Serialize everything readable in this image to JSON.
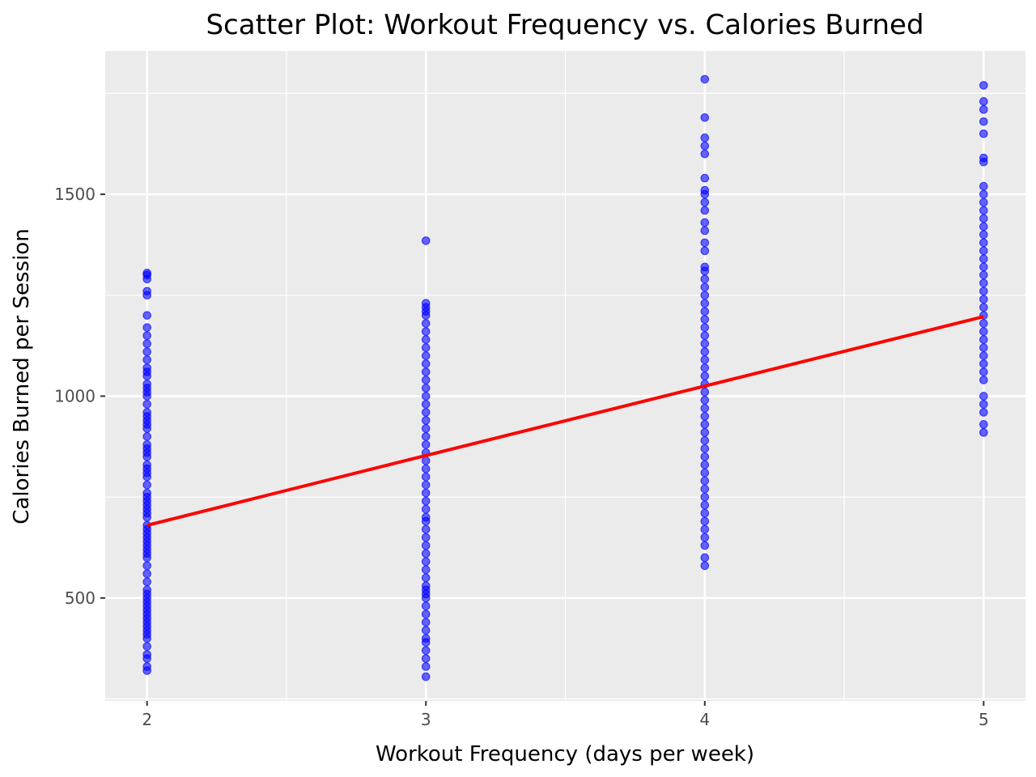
{
  "chart_data": {
    "type": "scatter",
    "title": "Scatter Plot: Workout Frequency vs. Calories Burned",
    "xlabel": "Workout Frequency (days per week)",
    "ylabel": "Calories Burned per Session",
    "xlim": [
      1.85,
      5.15
    ],
    "ylim": [
      245,
      1855
    ],
    "x_ticks": [
      2,
      3,
      4,
      5
    ],
    "x_tick_labels": [
      "2",
      "3",
      "4",
      "5"
    ],
    "y_ticks": [
      500,
      1000,
      1500
    ],
    "y_tick_labels": [
      "500",
      "1000",
      "1500"
    ],
    "grid": true,
    "legend": "none",
    "colors": {
      "points": "#0000ff",
      "trend_line": "#ff0000",
      "panel_background": "#ebebeb",
      "grid": "#ffffff"
    },
    "series": [
      {
        "x": 2,
        "y": [
          320,
          330,
          350,
          360,
          380,
          400,
          410,
          420,
          430,
          440,
          450,
          460,
          470,
          480,
          490,
          500,
          510,
          520,
          540,
          560,
          580,
          600,
          610,
          620,
          630,
          640,
          650,
          660,
          670,
          680,
          700,
          710,
          720,
          730,
          740,
          750,
          760,
          780,
          800,
          810,
          820,
          830,
          850,
          860,
          870,
          880,
          900,
          920,
          930,
          940,
          950,
          960,
          980,
          1000,
          1010,
          1020,
          1030,
          1050,
          1060,
          1070,
          1090,
          1110,
          1130,
          1150,
          1170,
          1200,
          1250,
          1260,
          1290,
          1300,
          1305
        ]
      },
      {
        "x": 3,
        "y": [
          305,
          330,
          350,
          370,
          390,
          400,
          420,
          440,
          460,
          480,
          500,
          510,
          520,
          530,
          550,
          570,
          590,
          610,
          630,
          650,
          670,
          690,
          700,
          720,
          740,
          760,
          780,
          800,
          820,
          840,
          860,
          880,
          900,
          920,
          940,
          960,
          980,
          1000,
          1020,
          1040,
          1060,
          1080,
          1100,
          1120,
          1140,
          1160,
          1180,
          1200,
          1210,
          1220,
          1230,
          1385
        ]
      },
      {
        "x": 4,
        "y": [
          580,
          600,
          630,
          650,
          670,
          690,
          710,
          730,
          750,
          770,
          790,
          810,
          830,
          850,
          870,
          890,
          910,
          930,
          950,
          970,
          990,
          1010,
          1030,
          1050,
          1070,
          1090,
          1110,
          1130,
          1150,
          1170,
          1190,
          1210,
          1230,
          1250,
          1270,
          1290,
          1310,
          1320,
          1360,
          1380,
          1410,
          1430,
          1460,
          1480,
          1500,
          1510,
          1540,
          1600,
          1620,
          1640,
          1690,
          1785
        ]
      },
      {
        "x": 5,
        "y": [
          910,
          930,
          960,
          980,
          1000,
          1040,
          1060,
          1080,
          1100,
          1120,
          1140,
          1160,
          1180,
          1200,
          1220,
          1240,
          1260,
          1280,
          1300,
          1320,
          1340,
          1360,
          1380,
          1400,
          1420,
          1440,
          1460,
          1480,
          1500,
          1520,
          1580,
          1590,
          1650,
          1680,
          1710,
          1730,
          1770
        ]
      }
    ],
    "trend_line": {
      "x": [
        2,
        3,
        4,
        5
      ],
      "y": [
        680,
        853,
        1025,
        1197
      ]
    }
  }
}
